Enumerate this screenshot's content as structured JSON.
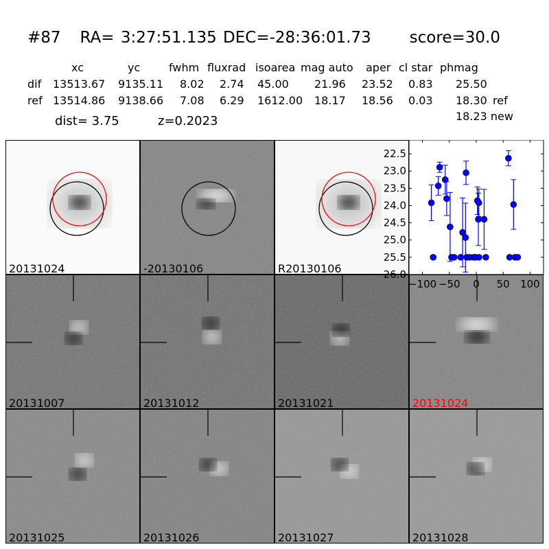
{
  "header": {
    "candidate": "#87",
    "ra": "RA= 3:27:51.135",
    "dec": "DEC=-28:36:01.73",
    "score": "score=30.0"
  },
  "table": {
    "columns": [
      "xc",
      "yc",
      "fwhm",
      "fluxrad",
      "isoarea",
      "mag auto",
      "aper",
      "cl star",
      "phmag"
    ],
    "rows": [
      {
        "label": "dif",
        "values": [
          "13513.67",
          "9135.11",
          "8.02",
          "2.74",
          "45.00",
          "21.96",
          "23.52",
          "0.83",
          "25.50"
        ],
        "suffix": ""
      },
      {
        "label": "ref",
        "values": [
          "13514.86",
          "9138.66",
          "7.08",
          "6.29",
          "1612.00",
          "18.17",
          "18.56",
          "0.03",
          "18.30"
        ],
        "suffix": "ref"
      }
    ],
    "extra_phmag": "18.23 new",
    "dist": "dist=  3.75",
    "z": "z=0.2023"
  },
  "panels": [
    {
      "label": "20131024",
      "label_color": "#000000",
      "kind": "new"
    },
    {
      "label": "-20130106",
      "label_color": "#000000",
      "kind": "diff"
    },
    {
      "label": "R20130106",
      "label_color": "#000000",
      "kind": "ref"
    },
    {
      "label": "20131007",
      "label_color": "#000000",
      "kind": "stamp"
    },
    {
      "label": "20131012",
      "label_color": "#000000",
      "kind": "stamp"
    },
    {
      "label": "20131021",
      "label_color": "#000000",
      "kind": "stamp"
    },
    {
      "label": "20131024",
      "label_color": "#ff0000",
      "kind": "stamp"
    },
    {
      "label": "20131025",
      "label_color": "#000000",
      "kind": "stamp"
    },
    {
      "label": "20131026",
      "label_color": "#000000",
      "kind": "stamp"
    },
    {
      "label": "20131027",
      "label_color": "#000000",
      "kind": "stamp"
    },
    {
      "label": "20131028",
      "label_color": "#000000",
      "kind": "stamp"
    }
  ],
  "colors": {
    "points": "#0000ff",
    "circle_new": "#ff0000",
    "circle_ref": "#000000",
    "highlight_label": "#ff0000"
  },
  "chart_data": {
    "type": "scatter",
    "error_bars": true,
    "xlim": [
      -125,
      125
    ],
    "ylim": [
      26.0,
      22.1
    ],
    "y_inverted": true,
    "xticks": [
      -100,
      -50,
      0,
      50,
      100
    ],
    "xtick_labels": [
      "−100",
      "−50",
      "0",
      "50",
      "100"
    ],
    "yticks": [
      22.5,
      23.0,
      23.5,
      24.0,
      24.5,
      25.0,
      25.5,
      26.0
    ],
    "ytick_labels": [
      "22.5",
      "23.0",
      "23.5",
      "24.0",
      "24.5",
      "25.0",
      "25.5",
      "26.0"
    ],
    "points": [
      {
        "x": -83.5,
        "y": 23.92,
        "err": 0.52
      },
      {
        "x": -80,
        "y": 25.5,
        "err": 0.05
      },
      {
        "x": -70.6,
        "y": 23.43,
        "err": 0.27
      },
      {
        "x": -68,
        "y": 22.89,
        "err": 0.15
      },
      {
        "x": -57.7,
        "y": 23.25,
        "err": 0.42
      },
      {
        "x": -55,
        "y": 23.8,
        "err": 0.49
      },
      {
        "x": -48.6,
        "y": 24.62,
        "err": 1.0
      },
      {
        "x": -46,
        "y": 25.5,
        "err": 0.05
      },
      {
        "x": -41,
        "y": 25.5,
        "err": 0.05
      },
      {
        "x": -28.8,
        "y": 25.5,
        "err": 0.05
      },
      {
        "x": -25.4,
        "y": 24.78,
        "err": 1.0
      },
      {
        "x": -20,
        "y": 24.93,
        "err": 1.0
      },
      {
        "x": -19,
        "y": 23.05,
        "err": 0.34
      },
      {
        "x": -17.6,
        "y": 25.5,
        "err": 0.05
      },
      {
        "x": -12,
        "y": 25.5,
        "err": 0.05
      },
      {
        "x": -4.4,
        "y": 25.5,
        "err": 0.05
      },
      {
        "x": -1.4,
        "y": 25.5,
        "err": 0.05
      },
      {
        "x": 5,
        "y": 25.5,
        "err": 0.05
      },
      {
        "x": 2.2,
        "y": 23.86,
        "err": 0.4
      },
      {
        "x": 4.8,
        "y": 23.92,
        "err": 0.4
      },
      {
        "x": 3.9,
        "y": 24.4,
        "err": 0.76
      },
      {
        "x": 14.6,
        "y": 24.4,
        "err": 0.87
      },
      {
        "x": 17.7,
        "y": 25.5,
        "err": 0.05
      },
      {
        "x": 59.8,
        "y": 22.63,
        "err": 0.22
      },
      {
        "x": 62,
        "y": 25.5,
        "err": 0.05
      },
      {
        "x": 69.3,
        "y": 23.97,
        "err": 0.72
      },
      {
        "x": 72,
        "y": 25.5,
        "err": 0.05
      },
      {
        "x": 77,
        "y": 25.5,
        "err": 0.05
      }
    ]
  }
}
